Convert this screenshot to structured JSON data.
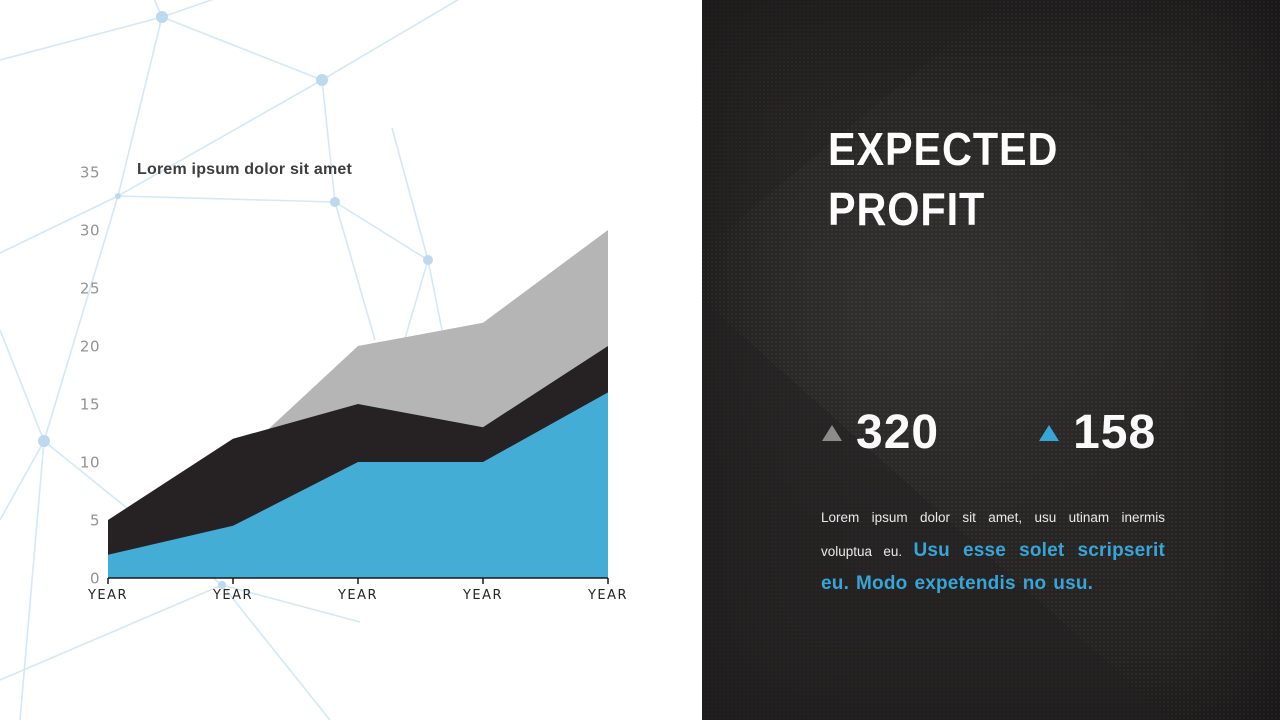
{
  "colors": {
    "accent_blue": "#38a5d8",
    "stat_gray_arrow": "#8c8c8c",
    "panel_bg": "#272424",
    "chart_blue": "#44add6",
    "chart_black": "#262223",
    "chart_gray": "#b5b5b5",
    "mesh_blue": "#d7e9f6",
    "axis_color": "#1a1a1a"
  },
  "chart_data": {
    "type": "area",
    "title": "Lorem ipsum dolor sit amet",
    "xlabel": "",
    "ylabel": "",
    "categories": [
      "YEAR",
      "YEAR",
      "YEAR",
      "YEAR",
      "YEAR"
    ],
    "series": [
      {
        "name": "series-gray",
        "color": "#b5b5b5",
        "values": [
          2,
          10,
          20,
          22,
          30
        ]
      },
      {
        "name": "series-black",
        "color": "#262223",
        "values": [
          5,
          12,
          15,
          13,
          20
        ]
      },
      {
        "name": "series-blue",
        "color": "#44add6",
        "values": [
          2,
          4.5,
          10,
          10,
          16
        ]
      }
    ],
    "y_ticks": [
      0,
      5,
      10,
      15,
      20,
      25,
      30,
      35
    ],
    "ylim": [
      0,
      35
    ],
    "grid": false,
    "legend": false,
    "style": "overlapping-silhouettes"
  },
  "panel": {
    "title": "EXPECTED PROFIT",
    "stats": [
      {
        "value": "320",
        "arrow_color": "#8c8c8c"
      },
      {
        "value": "158",
        "arrow_color": "#38a5d8"
      }
    ],
    "paragraph_regular": "Lorem ipsum dolor sit amet, usu utinam inermis voluptua eu. ",
    "paragraph_accent": "Usu esse solet scripserit eu. Modo expetendis no usu."
  }
}
